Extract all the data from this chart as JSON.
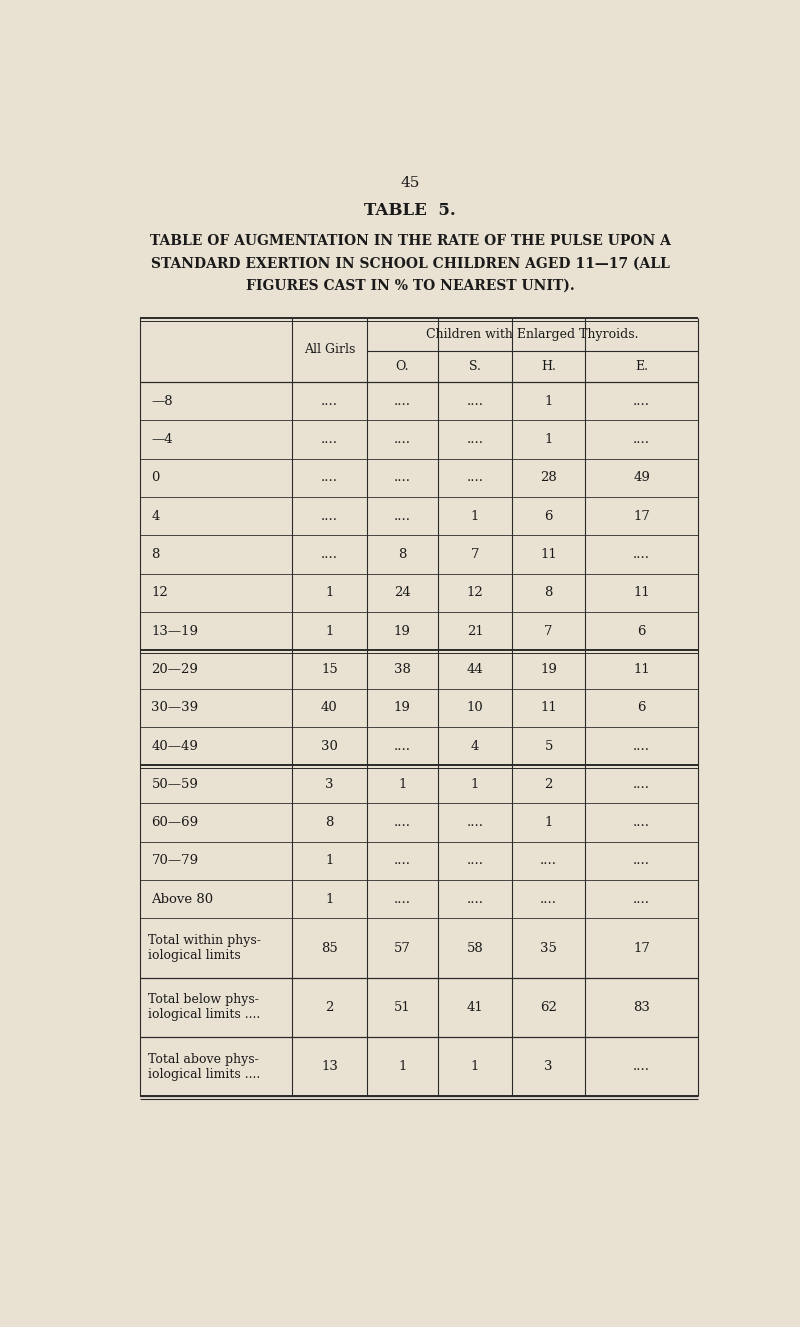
{
  "page_number": "45",
  "table_title": "TABLE  5.",
  "subtitle_lines": [
    "TABLE OF AUGMENTATION IN THE RATE OF THE PULSE UPON A",
    "STANDARD EXERTION IN SCHOOL CHILDREN AGED 11—17 (ALL",
    "FIGURES CAST IN % TO NEAREST UNIT)."
  ],
  "col_header_1": "All Girls",
  "col_header_group": "Children with Enlarged Thyroids.",
  "col_subheaders": [
    "O.",
    "S.",
    "H.",
    "E."
  ],
  "rows": [
    {
      "label": "—8",
      "all_girls": "....",
      "O": "....",
      "S": "....",
      "H": "1",
      "E": "...."
    },
    {
      "label": "—4",
      "all_girls": "....",
      "O": "....",
      "S": "....",
      "H": "1",
      "E": "...."
    },
    {
      "label": "0",
      "all_girls": "....",
      "O": "....",
      "S": "....",
      "H": "28",
      "E": "49"
    },
    {
      "label": "4",
      "all_girls": "....",
      "O": "....",
      "S": "1",
      "H": "6",
      "E": "17"
    },
    {
      "label": "8",
      "all_girls": "....",
      "O": "8",
      "S": "7",
      "H": "11",
      "E": "...."
    },
    {
      "label": "12",
      "all_girls": "1",
      "O": "24",
      "S": "12",
      "H": "8",
      "E": "11"
    },
    {
      "label": "13—19",
      "all_girls": "1",
      "O": "19",
      "S": "21",
      "H": "7",
      "E": "6"
    },
    {
      "label": "20—29",
      "all_girls": "15",
      "O": "38",
      "S": "44",
      "H": "19",
      "E": "11"
    },
    {
      "label": "30—39",
      "all_girls": "40",
      "O": "19",
      "S": "10",
      "H": "11",
      "E": "6"
    },
    {
      "label": "40—49",
      "all_girls": "30",
      "O": "....",
      "S": "4",
      "H": "5",
      "E": "...."
    },
    {
      "label": "50—59",
      "all_girls": "3",
      "O": "1",
      "S": "1",
      "H": "2",
      "E": "...."
    },
    {
      "label": "60—69",
      "all_girls": "8",
      "O": "....",
      "S": "....",
      "H": "1",
      "E": "...."
    },
    {
      "label": "70—79",
      "all_girls": "1",
      "O": "....",
      "S": "....",
      "H": "....",
      "E": "...."
    },
    {
      "label": "Above 80",
      "all_girls": "1",
      "O": "....",
      "S": "....",
      "H": "....",
      "E": "...."
    }
  ],
  "section_breaks_after": [
    6,
    9
  ],
  "summary_rows": [
    {
      "label": "Total within phys-\niological limits",
      "all_girls": "85",
      "O": "57",
      "S": "58",
      "H": "35",
      "E": "17"
    },
    {
      "label": "Total below phys-\niological limits ....",
      "all_girls": "2",
      "O": "51",
      "S": "41",
      "H": "62",
      "E": "83"
    },
    {
      "label": "Total above phys-\niological limits ....",
      "all_girls": "13",
      "O": "1",
      "S": "1",
      "H": "3",
      "E": "...."
    }
  ],
  "section_breaks_after_indices": [
    6,
    9
  ],
  "bg_color": "#e9e2d3",
  "text_color": "#1a1a1a",
  "line_color": "#2a2a2a"
}
